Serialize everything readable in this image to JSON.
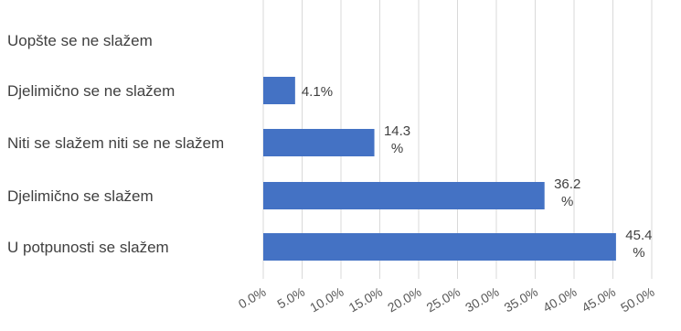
{
  "chart_data": {
    "type": "bar",
    "orientation": "horizontal",
    "categories": [
      "Uopšte se ne slažem",
      "Djelimično se ne slažem",
      "Niti se slažem niti se ne slažem",
      "Djelimično se slažem",
      "U potpunosti se slažem"
    ],
    "values": [
      0,
      4.1,
      14.3,
      36.2,
      45.4
    ],
    "data_labels": [
      "",
      "4.1%",
      "14.3 %",
      "36.2 %",
      "45.4 %"
    ],
    "x_ticks": [
      "0.0%",
      "5.0%",
      "10.0%",
      "15.0%",
      "20.0%",
      "25.0%",
      "30.0%",
      "35.0%",
      "40.0%",
      "45.0%",
      "50.0%"
    ],
    "xlim": [
      0,
      50
    ],
    "grid": true,
    "bar_color": "#4472c4",
    "title": "",
    "xlabel": "",
    "ylabel": ""
  }
}
